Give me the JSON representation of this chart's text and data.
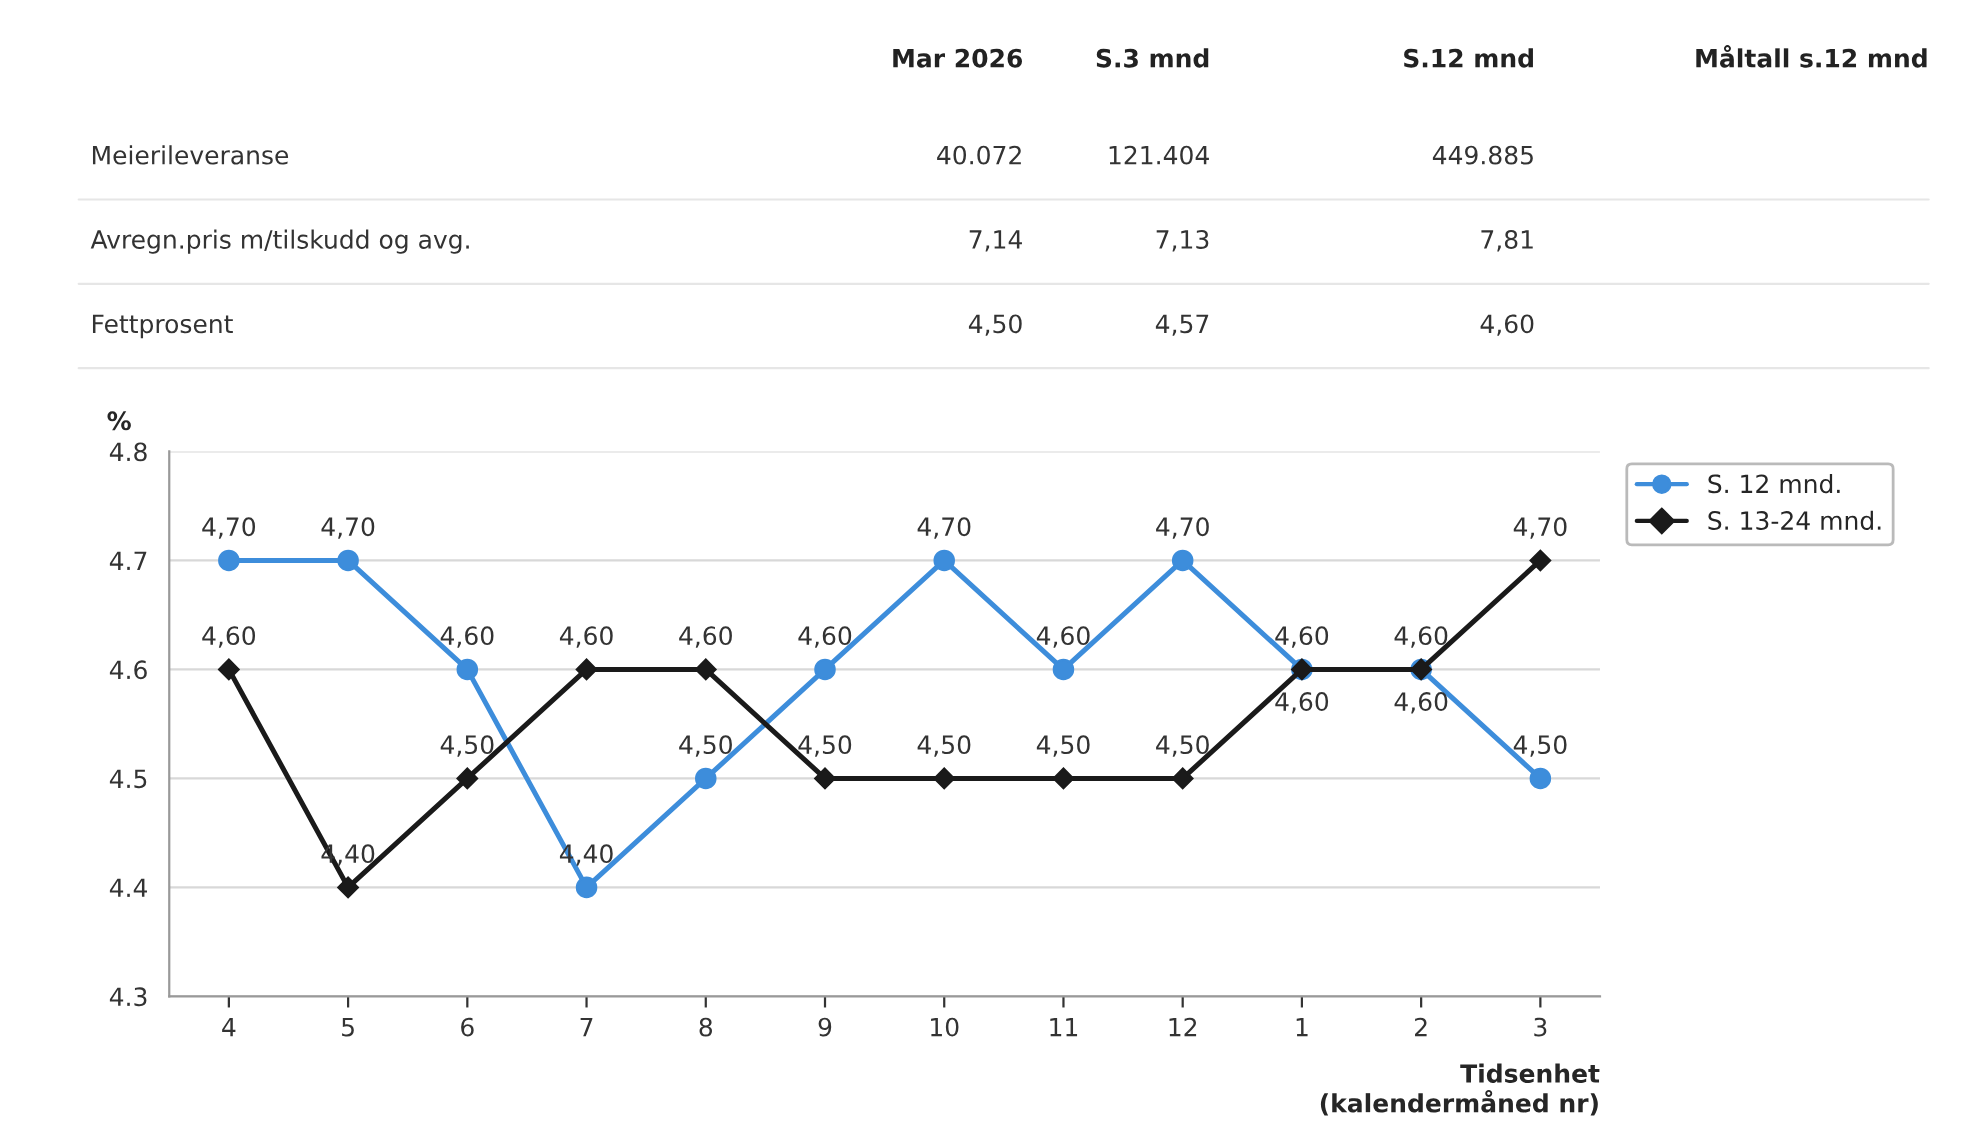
{
  "chart_data": {
    "type": "line",
    "ylabel": "%",
    "xlabel": "Tidsenhet\n(kalendermåned nr)",
    "categories": [
      "4",
      "5",
      "6",
      "7",
      "8",
      "9",
      "10",
      "11",
      "12",
      "1",
      "2",
      "3"
    ],
    "series": [
      {
        "name": "S. 12 mnd.",
        "color": "#3d8ddb",
        "marker": "circle",
        "values": [
          4.7,
          4.7,
          4.6,
          4.4,
          4.5,
          4.6,
          4.7,
          4.6,
          4.7,
          4.6,
          4.6,
          4.5
        ],
        "value_labels": [
          "4,70",
          "4,70",
          "4,60",
          "4,40",
          "4,50",
          "4,60",
          "4,70",
          "4,60",
          "4,70",
          "4,60",
          "4,60",
          "4,50"
        ]
      },
      {
        "name": "S. 13-24 mnd.",
        "color": "#1a1a1a",
        "marker": "diamond",
        "values": [
          4.6,
          4.4,
          4.5,
          4.6,
          4.6,
          4.5,
          4.5,
          4.5,
          4.5,
          4.6,
          4.6,
          4.7
        ],
        "value_labels": [
          "4,60",
          "4,40",
          "4,50",
          "4,60",
          "4,60",
          "4,50",
          "4,50",
          "4,50",
          "4,50",
          "4,60",
          "4,60",
          "4,70"
        ]
      }
    ],
    "ylim": [
      4.3,
      4.8
    ],
    "yticks": [
      4.3,
      4.4,
      4.5,
      4.6,
      4.7,
      4.8
    ],
    "grid": "y",
    "legend": "top right",
    "line_style": "solid",
    "annotations": [
      "Mar 2026",
      "S.3 mnd",
      "S.12 mnd",
      "Måltall s.12 mnd",
      "Meierileveranse",
      "40.072",
      "121.404",
      "449.885",
      "Avregn.pris m/tilskudd og avg.",
      "7,14",
      "7,13",
      "7,81",
      "Fettprosent",
      "4,50",
      "4,57",
      "4,60"
    ]
  }
}
